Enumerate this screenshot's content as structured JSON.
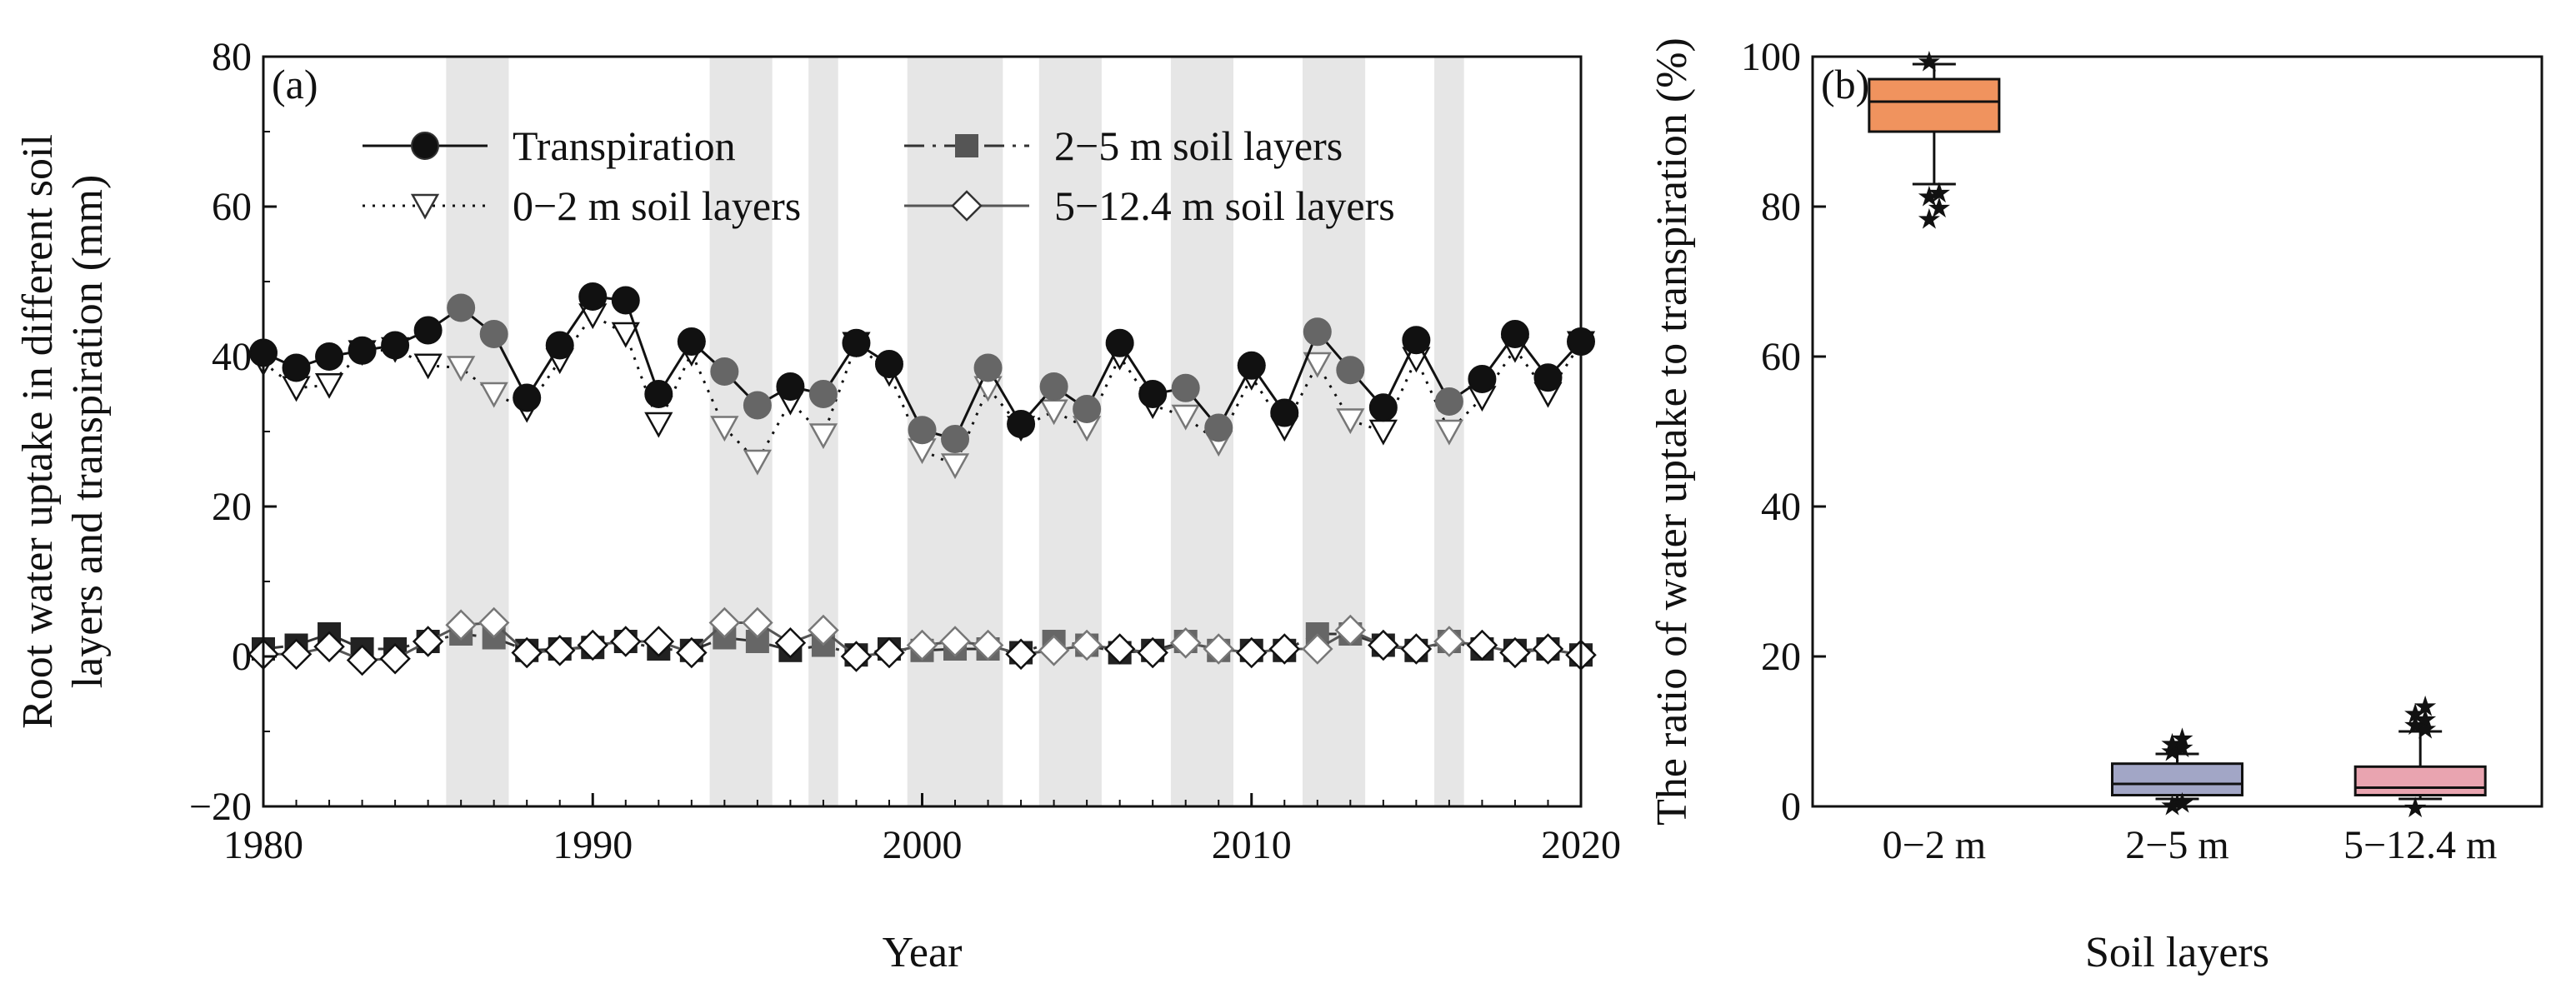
{
  "chart_data": [
    {
      "type": "line",
      "panel_label": "(a)",
      "xlabel": "Year",
      "ylabel_line1": "Root water uptake in different soil",
      "ylabel_line2": "layers and transpiration (mm)",
      "xlim": [
        1980,
        2020
      ],
      "ylim": [
        -20,
        80
      ],
      "xticks": [
        "1980",
        "1990",
        "2000",
        "2010",
        "2020"
      ],
      "yticks": [
        "−20",
        "0",
        "20",
        "40",
        "60",
        "80"
      ],
      "shaded_years": [
        1986,
        1987,
        1994,
        1995,
        1997,
        2000,
        2001,
        2002,
        2004,
        2005,
        2008,
        2009,
        2012,
        2013,
        2016
      ],
      "x": [
        1980,
        1981,
        1982,
        1983,
        1984,
        1985,
        1986,
        1987,
        1988,
        1989,
        1990,
        1991,
        1992,
        1993,
        1994,
        1995,
        1996,
        1997,
        1998,
        1999,
        2000,
        2001,
        2002,
        2003,
        2004,
        2005,
        2006,
        2007,
        2008,
        2009,
        2010,
        2011,
        2012,
        2013,
        2014,
        2015,
        2016,
        2017,
        2018,
        2019,
        2020
      ],
      "series": [
        {
          "name": "Transpiration",
          "legend_label": "Transpiration",
          "marker": "circle",
          "values": [
            40.5,
            38.5,
            40,
            40.8,
            41.5,
            43.5,
            46.5,
            43,
            34.5,
            41.5,
            48,
            47.5,
            35,
            42,
            38,
            33.5,
            36,
            35,
            41.8,
            39,
            30.2,
            29,
            38.5,
            31,
            36,
            33,
            41.8,
            35,
            35.8,
            30.5,
            38.8,
            32.5,
            43.3,
            38.2,
            33.2,
            42.2,
            34,
            37,
            43,
            37.2,
            42
          ]
        },
        {
          "name": "0−2 m soil layers",
          "legend_label": "0−2 m soil layers",
          "marker": "triangle-down",
          "values": [
            39.2,
            35.8,
            36.2,
            40.6,
            41,
            38.8,
            38.5,
            35,
            33,
            39.5,
            45.5,
            43,
            31,
            40.5,
            30.5,
            26,
            34,
            29.5,
            41.7,
            37.8,
            27.5,
            25.5,
            35.8,
            30.5,
            32.7,
            30.5,
            40,
            33.5,
            32,
            28.5,
            37.3,
            30.5,
            39,
            31.5,
            30,
            39.7,
            30,
            34.5,
            41,
            35,
            41.8
          ]
        },
        {
          "name": "2−5 m soil layers",
          "legend_label": "2−5 m soil layers",
          "marker": "square",
          "values": [
            1,
            1.5,
            3,
            1,
            1,
            2,
            3,
            2.5,
            0.8,
            1,
            1.2,
            2,
            1,
            0.8,
            2.5,
            2,
            0.8,
            1.5,
            0.2,
            1,
            0.8,
            1,
            1,
            0.5,
            2,
            1.5,
            0.5,
            0.8,
            2,
            0.8,
            0.8,
            0.8,
            3,
            3,
            1.5,
            0.8,
            2,
            1,
            0.8,
            1,
            0.2
          ]
        },
        {
          "name": "5−12.4 m soil layers",
          "legend_label": "5−12.4 m soil layers",
          "marker": "diamond",
          "values": [
            0.3,
            0.3,
            1.3,
            -0.5,
            -0.3,
            2,
            4.2,
            4.5,
            0.5,
            0.8,
            1.5,
            2,
            2,
            0.5,
            4.5,
            4.5,
            1.8,
            3.5,
            0,
            0.5,
            1.5,
            2,
            1.5,
            0.3,
            0.8,
            1.5,
            1,
            0.5,
            1.8,
            1,
            0.5,
            1,
            1,
            3.5,
            1.5,
            1,
            2,
            1.5,
            0.5,
            1,
            0.2
          ]
        }
      ]
    },
    {
      "type": "box",
      "panel_label": "(b)",
      "xlabel": "Soil layers",
      "ylabel": "The ratio of water uptake to transpiration (%)",
      "ylim": [
        0,
        100
      ],
      "yticks": [
        "0",
        "20",
        "40",
        "60",
        "80",
        "100"
      ],
      "categories": [
        "0−2 m",
        "2−5 m",
        "5−12.4 m"
      ],
      "colors": [
        "#f0935e",
        "#a2a6c6",
        "#e9a4b0"
      ],
      "boxes": [
        {
          "category": "0−2 m",
          "whisker_low": 83,
          "q1": 90,
          "median": 94,
          "q3": 97,
          "whisker_high": 99,
          "outliers": [
            78.5,
            80,
            81.5,
            82,
            99.5
          ]
        },
        {
          "category": "2−5 m",
          "whisker_low": 1,
          "q1": 1.5,
          "median": 3,
          "q3": 5.7,
          "whisker_high": 7,
          "outliers": [
            0.3,
            0.6,
            7.5,
            8,
            8.5,
            9.2
          ]
        },
        {
          "category": "5−12.4 m",
          "whisker_low": 1,
          "q1": 1.5,
          "median": 2.5,
          "q3": 5.3,
          "whisker_high": 10,
          "outliers": [
            0,
            10.5,
            11,
            11.8,
            12.5,
            13.5
          ]
        }
      ]
    }
  ]
}
